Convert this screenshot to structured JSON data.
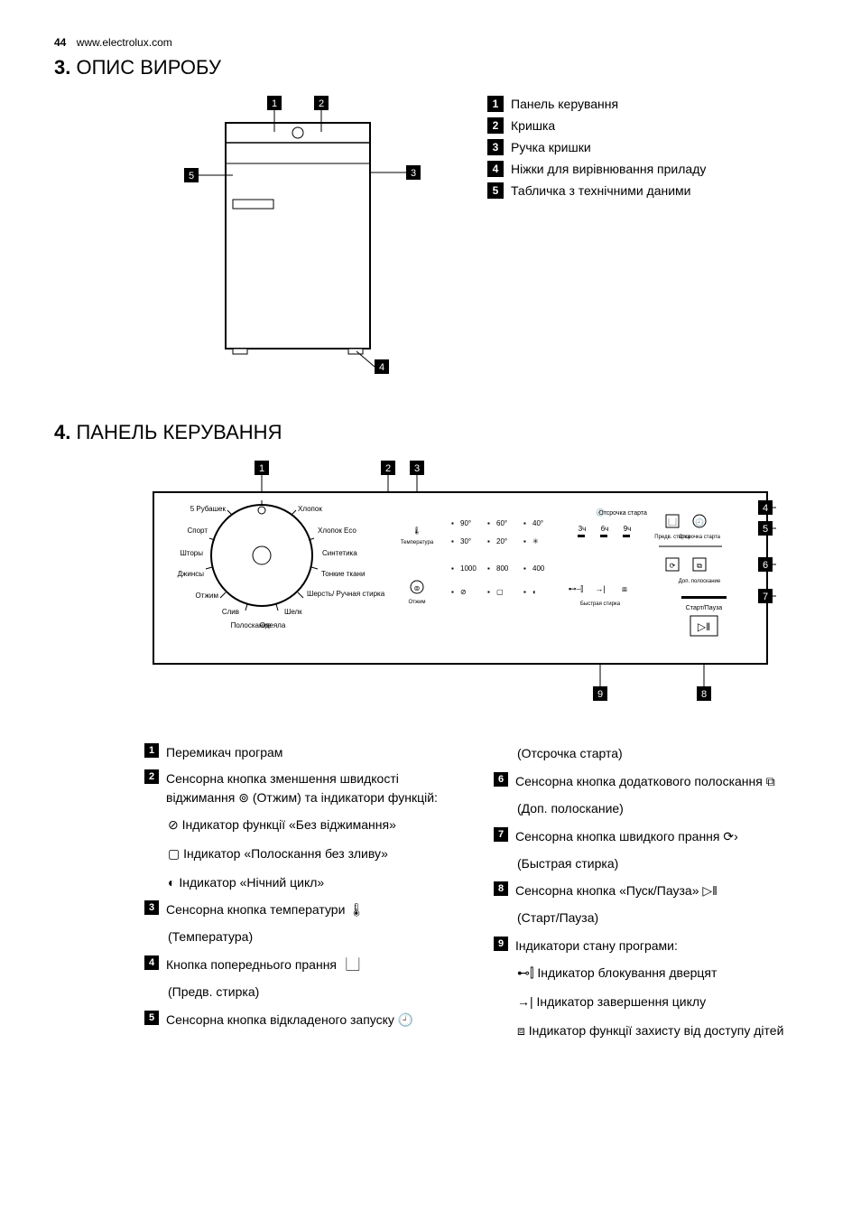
{
  "header": {
    "page_number": "44",
    "site": "www.electrolux.com"
  },
  "section3": {
    "heading_num": "3.",
    "heading_text": "ОПИС ВИРОБУ",
    "callouts": [
      {
        "n": "1",
        "label": "Панель керування"
      },
      {
        "n": "2",
        "label": "Кришка"
      },
      {
        "n": "3",
        "label": "Ручка кришки"
      },
      {
        "n": "4",
        "label": "Ніжки для вирівнювання приладу"
      },
      {
        "n": "5",
        "label": "Табличка з технічними даними"
      }
    ],
    "diagram": {
      "stroke": "#000000",
      "fill": "#ffffff",
      "label_badge_bg": "#000000",
      "label_badge_fg": "#ffffff"
    }
  },
  "section4": {
    "heading_num": "4.",
    "heading_text": "ПАНЕЛЬ КЕРУВАННЯ",
    "panel": {
      "dial_programs_left": [
        "5 Рубашек",
        "Спорт",
        "Шторы",
        "Джинсы",
        "Отжим",
        "Слив",
        "Полоскание"
      ],
      "dial_programs_right": [
        "Хлопок",
        "Хлопок Eco",
        "Синтетика",
        "Тонкие ткани",
        "Шерсть/\nРучная стирка",
        "Шелк",
        "Одеяла"
      ],
      "temp_label": "Температура",
      "spin_label": "Отжим",
      "temps_row1": [
        "90°",
        "60°",
        "40°"
      ],
      "temps_row2": [
        "30°",
        "20°",
        "✳"
      ],
      "spins": [
        "1000",
        "800",
        "400"
      ],
      "spin_icons": [
        "⊘",
        "▢",
        "◐"
      ],
      "delay_title": "Отсрочка старта",
      "delay_vals": [
        "3ч",
        "6ч",
        "9ч"
      ],
      "quick_label": "Быстрая стирка",
      "rinse_label": "Доп. полоскание",
      "prewash_label": "Предв. стирка",
      "delay_btn_label": "Отсрочка старта",
      "start_label": "Старт/Пауза",
      "colors": {
        "border": "#000000",
        "text": "#000000",
        "bg": "#ffffff"
      }
    },
    "legend_left": [
      {
        "n": "1",
        "text": "Перемикач програм"
      },
      {
        "n": "2",
        "text": "Сенсорна кнопка зменшення швидкості віджимання ⊚ (Отжим) та індикатори функцій:"
      },
      {
        "sub": true,
        "icon": "⊘",
        "text": "Індикатор функції «Без віджимання»"
      },
      {
        "sub": true,
        "icon": "▢",
        "text": "Індикатор «Полоскання без зливу»"
      },
      {
        "sub": true,
        "icon": "◐",
        "text": "Індикатор «Нічний цикл»"
      },
      {
        "n": "3",
        "text": "Сенсорна кнопка температури 🌡"
      },
      {
        "sub2": true,
        "text": "(Температура)"
      },
      {
        "n": "4",
        "text": "Кнопка попереднього прання ⎿⏌"
      },
      {
        "sub2": true,
        "text": "(Предв. стирка)"
      },
      {
        "n": "5",
        "text": "Сенсорна кнопка відкладеного запуску 🕘"
      }
    ],
    "legend_right": [
      {
        "sub2": true,
        "text": "(Отсрочка старта)"
      },
      {
        "n": "6",
        "text": "Сенсорна кнопка додаткового полоскання ⧉"
      },
      {
        "sub2": true,
        "text": "(Доп. полоскание)"
      },
      {
        "n": "7",
        "text": "Сенсорна кнопка швидкого прання ⟳›"
      },
      {
        "sub2": true,
        "text": "(Быстрая стирка)"
      },
      {
        "n": "8",
        "text": "Сенсорна кнопка «Пуск/Пауза» ▷‖"
      },
      {
        "sub2": true,
        "text": "(Старт/Пауза)"
      },
      {
        "n": "9",
        "text": "Індикатори стану програми:"
      },
      {
        "sub": true,
        "icon": "⊷⫿",
        "text": "Індикатор блокування дверцят"
      },
      {
        "sub": true,
        "icon": "→|",
        "text": "Індикатор завершення циклу"
      },
      {
        "sub": true,
        "icon": "⧈",
        "text": "Індикатор функції захисту від доступу дітей"
      }
    ]
  }
}
